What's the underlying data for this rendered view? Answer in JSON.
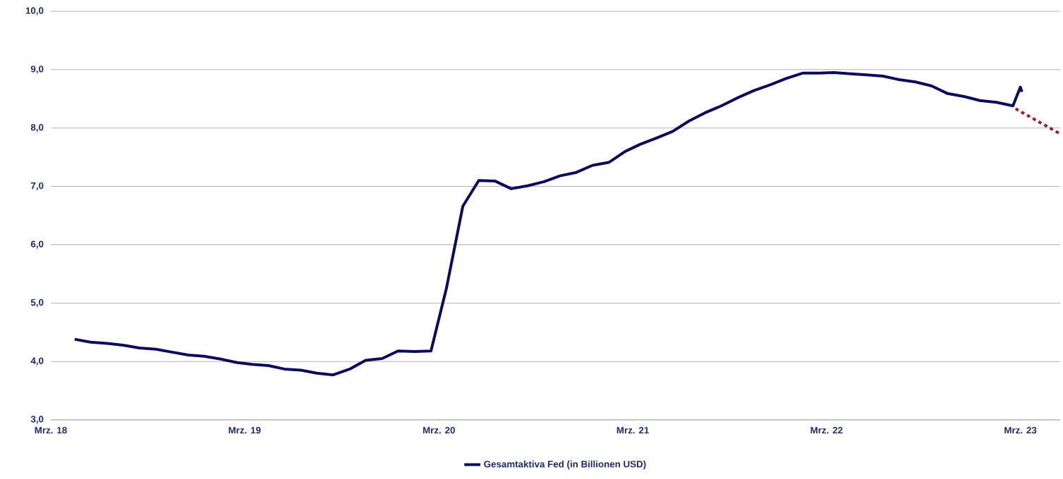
{
  "chart_data": {
    "type": "line",
    "xlim": [
      "2018-03-01",
      "2023-05-15"
    ],
    "ylim": [
      3,
      10
    ],
    "xticks": [
      {
        "value": "2018-03-01",
        "label": "Mrz. 18"
      },
      {
        "value": "2019-03-01",
        "label": "Mrz. 19"
      },
      {
        "value": "2020-03-01",
        "label": "Mrz. 20"
      },
      {
        "value": "2021-03-01",
        "label": "Mrz. 21"
      },
      {
        "value": "2022-03-01",
        "label": "Mrz. 22"
      },
      {
        "value": "2023-03-01",
        "label": "Mrz. 23"
      }
    ],
    "yticks": [
      {
        "value": 3,
        "label": "3,0"
      },
      {
        "value": 4,
        "label": "4,0"
      },
      {
        "value": 5,
        "label": "5,0"
      },
      {
        "value": 6,
        "label": "6,0"
      },
      {
        "value": 7,
        "label": "7,0"
      },
      {
        "value": 8,
        "label": "8,0"
      },
      {
        "value": 9,
        "label": "9,0"
      },
      {
        "value": 10,
        "label": "10,0"
      }
    ],
    "grid": "y",
    "legend": "bottom",
    "series": [
      {
        "name": "Gesamtaktiva Fed (in Billionen USD)",
        "color": "#0c0c5c",
        "line_style": "solid",
        "x": [
          "2018-04-15",
          "2018-05-15",
          "2018-06-15",
          "2018-07-15",
          "2018-08-15",
          "2018-09-15",
          "2018-10-15",
          "2018-11-15",
          "2018-12-15",
          "2019-01-15",
          "2019-02-15",
          "2019-03-15",
          "2019-04-15",
          "2019-05-15",
          "2019-06-15",
          "2019-07-15",
          "2019-08-15",
          "2019-09-15",
          "2019-10-15",
          "2019-11-15",
          "2019-12-15",
          "2020-01-15",
          "2020-02-15",
          "2020-03-15",
          "2020-04-15",
          "2020-05-15",
          "2020-06-15",
          "2020-07-15",
          "2020-08-15",
          "2020-09-15",
          "2020-10-15",
          "2020-11-15",
          "2020-12-15",
          "2021-01-15",
          "2021-02-15",
          "2021-03-15",
          "2021-04-15",
          "2021-05-15",
          "2021-06-15",
          "2021-07-15",
          "2021-08-15",
          "2021-09-15",
          "2021-10-15",
          "2021-11-15",
          "2021-12-15",
          "2022-01-15",
          "2022-02-15",
          "2022-03-15",
          "2022-04-15",
          "2022-05-15",
          "2022-06-15",
          "2022-07-15",
          "2022-08-15",
          "2022-09-15",
          "2022-10-15",
          "2022-11-15",
          "2022-12-15",
          "2023-01-15",
          "2023-02-15",
          "2023-03-01",
          "2023-03-04"
        ],
        "values": [
          4.38,
          4.33,
          4.31,
          4.28,
          4.23,
          4.21,
          4.16,
          4.11,
          4.09,
          4.04,
          3.98,
          3.95,
          3.93,
          3.87,
          3.85,
          3.8,
          3.77,
          3.87,
          4.02,
          4.05,
          4.18,
          4.17,
          4.18,
          5.25,
          6.66,
          7.1,
          7.09,
          6.96,
          7.01,
          7.08,
          7.18,
          7.24,
          7.36,
          7.41,
          7.6,
          7.72,
          7.83,
          7.94,
          8.12,
          8.26,
          8.38,
          8.52,
          8.64,
          8.74,
          8.85,
          8.94,
          8.94,
          8.95,
          8.93,
          8.91,
          8.89,
          8.83,
          8.79,
          8.72,
          8.59,
          8.54,
          8.47,
          8.44,
          8.38,
          8.7,
          8.62
        ]
      },
      {
        "color": "#9b1b30",
        "line_style": "dotted",
        "x": [
          "2023-02-20",
          "2023-05-15"
        ],
        "values": [
          8.33,
          7.9
        ]
      }
    ]
  }
}
